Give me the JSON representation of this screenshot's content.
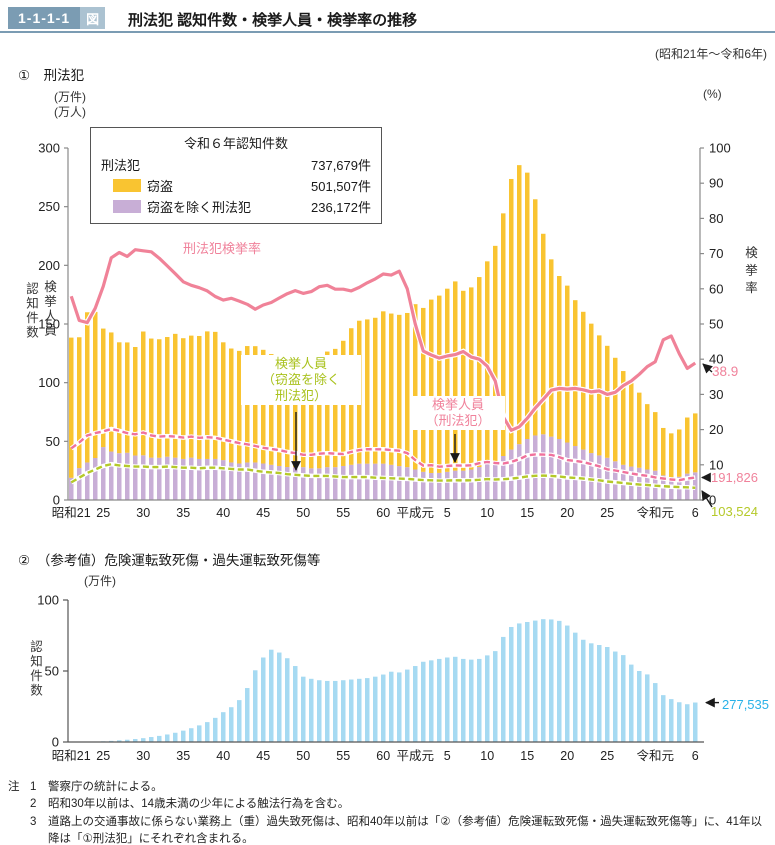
{
  "header": {
    "tag_number": "1-1-1-1",
    "tag_type": "図",
    "title": "刑法犯 認知件数・検挙人員・検挙率の推移",
    "period": "(昭和21年～令和6年)"
  },
  "section1": {
    "label": "①　刑法犯",
    "axis": {
      "unit_count": "(万件)",
      "unit_people": "(万人)",
      "left_label_count": "認知件数",
      "left_label_people": "検挙人員",
      "unit_percent": "(%)",
      "right_label": "検挙率"
    },
    "legend": {
      "title": "令和６年認知件数",
      "rows": [
        {
          "swatch": "none",
          "label": "刑法犯",
          "value": "737,679件"
        },
        {
          "swatch": "theft",
          "label": "窃盗",
          "value": "501,507件"
        },
        {
          "swatch": "nontheft",
          "label": "窃盗を除く刑法犯",
          "value": "236,172件"
        }
      ]
    },
    "annotations": {
      "rate_label": "刑法犯検挙率",
      "arrestees_ex": {
        "lines": [
          "検挙人員",
          "（窃盗を除く",
          "刑法犯）"
        ]
      },
      "arrestees": {
        "lines": [
          "検挙人員",
          "（刑法犯）"
        ]
      },
      "rate_end": "38.9",
      "arrestees_end": "191,826",
      "arrestees_ex_end": "103,524"
    }
  },
  "section2": {
    "label": "②　（参考値）危険運転致死傷・過失運転致死傷等",
    "axis": {
      "unit": "(万件)",
      "left_label": "認知件数"
    },
    "annotation_end": "277,535"
  },
  "notes": {
    "prefix": "注",
    "items": [
      {
        "n": "1",
        "t": "警察庁の統計による。"
      },
      {
        "n": "2",
        "t": "昭和30年以前は、14歳未満の少年による触法行為を含む。"
      },
      {
        "n": "3",
        "t": "道路上の交通事故に係らない業務上（重）過失致死傷は、昭和40年以前は「②（参考値）危険運転致死傷・過失運転致死傷等」に、41年以降は「①刑法犯」にそれぞれ含まれる。"
      }
    ]
  },
  "colors": {
    "header_blue": "#7b9cb3",
    "header_blue_light": "#abc2d1",
    "theft_bar": "#f9c431",
    "nontheft_bar": "#c8aed6",
    "rate_line": "#f08298",
    "arrestees_dashed": "#f0719c",
    "arrestees_ex_dashed": "#b5c929",
    "traffic_bar": "#a6daf2",
    "traffic_value_text": "#29b2e8",
    "axis_gray": "#8a8a8a"
  },
  "chart_data": [
    {
      "type": "bar",
      "title": "刑法犯",
      "x_era_start": "昭和21",
      "x_era_end": "令和6",
      "n_points": 79,
      "ylim_left": [
        0,
        300
      ],
      "ylabel_left": "認知件数・検挙人員（万件・万人）",
      "ylim_right": [
        0,
        100
      ],
      "ylabel_right": "検挙率（%）",
      "y_ticks_left": [
        0,
        50,
        100,
        150,
        200,
        250,
        300
      ],
      "y_ticks_right": [
        0,
        10,
        20,
        30,
        40,
        50,
        60,
        70,
        80,
        90,
        100
      ],
      "x_ticks": [
        {
          "i": 0,
          "label": "昭和21"
        },
        {
          "i": 4,
          "label": "25"
        },
        {
          "i": 9,
          "label": "30"
        },
        {
          "i": 14,
          "label": "35"
        },
        {
          "i": 19,
          "label": "40"
        },
        {
          "i": 24,
          "label": "45"
        },
        {
          "i": 29,
          "label": "50"
        },
        {
          "i": 34,
          "label": "55"
        },
        {
          "i": 39,
          "label": "60"
        },
        {
          "i": 43,
          "label": "平成元"
        },
        {
          "i": 47,
          "label": "5"
        },
        {
          "i": 52,
          "label": "10"
        },
        {
          "i": 57,
          "label": "15"
        },
        {
          "i": 62,
          "label": "20"
        },
        {
          "i": 67,
          "label": "25"
        },
        {
          "i": 73,
          "label": "令和元"
        },
        {
          "i": 78,
          "label": "6"
        }
      ],
      "series": [
        {
          "name": "窃盗を除く刑法犯（認知件数）",
          "type": "bar-stack-bottom",
          "color": "#c8aed6",
          "values": [
            18.9,
            27.2,
            32.0,
            35.8,
            45.1,
            41.3,
            39.9,
            40.3,
            37.9,
            38.1,
            36.1,
            36.0,
            36.9,
            36.1,
            35.0,
            36.1,
            35.0,
            35.0,
            35.0,
            34.0,
            32.0,
            31.1,
            32.0,
            32.0,
            31.1,
            30.0,
            29.0,
            28.1,
            28.0,
            28.0,
            27.0,
            27.0,
            28.0,
            28.0,
            29.0,
            30.0,
            31.0,
            31.0,
            31.0,
            31.0,
            30.0,
            28.9,
            28.0,
            26.0,
            24.0,
            23.0,
            23.1,
            24.0,
            25.0,
            25.0,
            26.0,
            28.1,
            31.0,
            33.0,
            37.5,
            43.0,
            47.6,
            52.0,
            55.0,
            56.0,
            54.0,
            52.0,
            49.0,
            46.0,
            43.0,
            40.0,
            38.0,
            36.0,
            33.0,
            30.0,
            28.5,
            27.5,
            26.0,
            25.0,
            21.0,
            19.5,
            19.8,
            22.5,
            23.6
          ]
        },
        {
          "name": "窃盗（認知件数）",
          "type": "bar-stack-top",
          "color": "#f9c431",
          "values": [
            119.5,
            111.5,
            128.0,
            124.5,
            101.0,
            101.5,
            94.5,
            94.0,
            92.5,
            105.5,
            101.5,
            101.0,
            102.0,
            105.5,
            102.9,
            104.0,
            104.8,
            108.7,
            108.3,
            100.4,
            97.1,
            96.0,
            99.2,
            99.1,
            96.9,
            94.4,
            93.4,
            91.0,
            93.1,
            95.4,
            96.4,
            95.7,
            98.5,
            100.8,
            106.7,
            116.4,
            121.8,
            122.9,
            124.3,
            129.8,
            128.9,
            128.9,
            131.4,
            140.9,
            139.7,
            147.8,
            151.1,
            156.1,
            161.3,
            153.3,
            155.2,
            161.9,
            172.4,
            183.6,
            206.8,
            230.6,
            237.8,
            227.0,
            201.3,
            170.9,
            151.1,
            138.9,
            133.7,
            124.3,
            117.4,
            110.3,
            102.3,
            95.4,
            88.2,
            79.9,
            71.1,
            64.0,
            55.7,
            49.9,
            40.4,
            37.3,
            40.3,
            47.8,
            50.2
          ]
        },
        {
          "name": "刑法犯検挙率",
          "type": "line",
          "axis": "right",
          "color": "#f08298",
          "end_value": 38.9,
          "values": [
            57.9,
            51.0,
            50.4,
            54.5,
            60.7,
            68.8,
            70.3,
            69.2,
            71.1,
            70.8,
            70.5,
            68.7,
            66.5,
            64.3,
            62.0,
            61.0,
            60.3,
            59.4,
            57.8,
            56.8,
            57.3,
            56.5,
            55.6,
            54.2,
            55.4,
            56.1,
            57.4,
            58.6,
            59.5,
            58.7,
            59.2,
            60.6,
            61.0,
            59.9,
            59.9,
            59.4,
            60.4,
            61.7,
            62.8,
            64.2,
            63.9,
            65.0,
            60.0,
            50.0,
            42.3,
            41.2,
            40.3,
            40.9,
            41.3,
            42.2,
            40.6,
            40.0,
            38.0,
            33.8,
            23.6,
            19.8,
            20.8,
            23.2,
            26.1,
            28.6,
            31.2,
            31.7,
            31.5,
            31.7,
            31.3,
            30.7,
            31.0,
            30.0,
            30.6,
            32.5,
            33.8,
            35.7,
            37.9,
            39.3,
            45.5,
            46.6,
            41.6,
            37.4,
            38.9
          ]
        },
        {
          "name": "検挙人員（刑法犯）",
          "type": "dashed-line",
          "axis": "left",
          "color": "#f0719c",
          "end_value": 191826,
          "values": [
            44.0,
            49.0,
            55.0,
            57.0,
            58.5,
            60.5,
            59.0,
            57.0,
            56.0,
            57.5,
            55.0,
            54.0,
            54.5,
            54.0,
            53.2,
            54.0,
            53.0,
            53.5,
            53.0,
            51.5,
            50.0,
            48.5,
            47.5,
            46.0,
            44.5,
            43.5,
            42.5,
            41.0,
            40.0,
            38.5,
            38.5,
            39.5,
            40.0,
            39.5,
            39.2,
            41.0,
            42.5,
            43.3,
            43.2,
            43.2,
            42.5,
            42.0,
            40.0,
            34.0,
            29.3,
            29.7,
            28.4,
            29.0,
            29.5,
            29.3,
            29.6,
            31.4,
            32.4,
            31.5,
            31.0,
            32.5,
            34.8,
            38.0,
            38.9,
            38.7,
            38.4,
            36.6,
            34.0,
            33.3,
            32.3,
            30.6,
            28.7,
            26.2,
            25.1,
            23.9,
            22.6,
            21.5,
            20.6,
            19.3,
            18.3,
            17.5,
            16.9,
            18.3,
            19.2
          ]
        },
        {
          "name": "検挙人員（窃盗を除く刑法犯）",
          "type": "dashed-line",
          "axis": "left",
          "color": "#b5c929",
          "end_value": 103524,
          "values": [
            15.0,
            19.0,
            23.0,
            26.0,
            29.0,
            30.5,
            29.5,
            29.0,
            28.5,
            28.5,
            28.0,
            28.0,
            28.5,
            28.0,
            27.5,
            27.5,
            27.0,
            27.5,
            27.5,
            27.0,
            26.5,
            26.0,
            26.0,
            25.0,
            24.0,
            23.5,
            23.0,
            22.0,
            21.5,
            21.0,
            20.5,
            20.5,
            20.5,
            20.0,
            19.5,
            19.5,
            19.5,
            19.5,
            19.0,
            18.8,
            18.5,
            18.2,
            18.0,
            17.5,
            17.0,
            16.8,
            16.5,
            16.6,
            16.8,
            16.7,
            16.8,
            17.2,
            17.8,
            17.5,
            17.7,
            18.2,
            19.0,
            20.0,
            20.6,
            20.8,
            20.5,
            20.0,
            19.2,
            18.8,
            18.2,
            17.5,
            16.8,
            15.8,
            15.2,
            14.5,
            13.8,
            13.2,
            12.8,
            12.2,
            11.8,
            11.3,
            11.0,
            10.8,
            10.4
          ]
        }
      ]
    },
    {
      "type": "bar",
      "title": "（参考値）危険運転致死傷・過失運転致死傷等",
      "n_points": 79,
      "ylim": [
        0,
        100
      ],
      "ylabel": "認知件数（万件）",
      "y_ticks": [
        0,
        50,
        100
      ],
      "bar_color": "#a6daf2",
      "end_value": 277535,
      "values": [
        0.1,
        0.1,
        0.2,
        0.3,
        0.5,
        0.8,
        1.2,
        1.6,
        2.1,
        2.7,
        3.5,
        4.3,
        5.3,
        6.5,
        8.0,
        9.7,
        11.7,
        14.0,
        17.0,
        21.0,
        24.5,
        29.5,
        38.0,
        50.5,
        59.5,
        65.0,
        63.0,
        59.0,
        53.5,
        46.0,
        44.5,
        43.5,
        43.0,
        43.0,
        43.5,
        44.0,
        44.5,
        45.0,
        46.0,
        47.5,
        49.5,
        49.0,
        51.0,
        53.5,
        56.5,
        57.5,
        58.5,
        59.5,
        60.0,
        58.5,
        58.0,
        58.5,
        61.0,
        64.0,
        74.0,
        81.0,
        83.5,
        84.5,
        85.5,
        86.5,
        86.3,
        85.3,
        82.0,
        77.0,
        72.0,
        69.5,
        68.3,
        66.9,
        63.7,
        61.2,
        54.5,
        50.0,
        47.6,
        41.5,
        33.0,
        30.2,
        28.0,
        26.6,
        27.8
      ]
    }
  ]
}
